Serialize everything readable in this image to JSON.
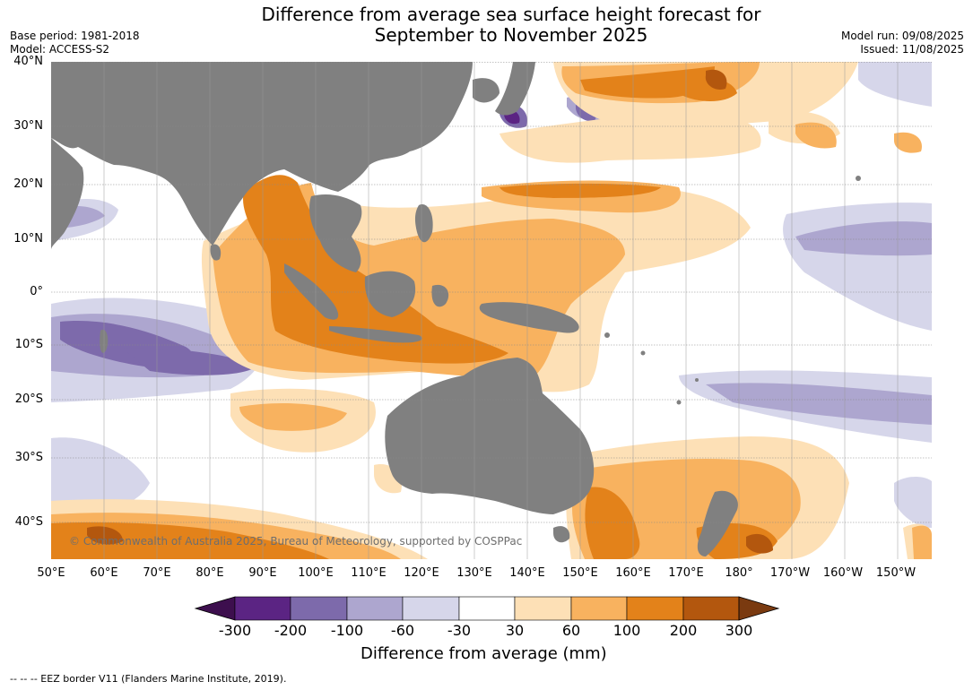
{
  "header": {
    "title_line1": "Difference from average sea surface height forecast for",
    "title_line2": "September to November 2025",
    "base_period": "Base period: 1981-2018",
    "model": "Model: ACCESS-S2",
    "model_run": "Model run: 09/08/2025",
    "issued": "Issued: 11/08/2025"
  },
  "map": {
    "lat_labels": [
      "40°N",
      "30°N",
      "20°N",
      "10°N",
      "0°",
      "10°S",
      "20°S",
      "30°S",
      "40°S"
    ],
    "lon_labels": [
      "50°E",
      "60°E",
      "70°E",
      "80°E",
      "90°E",
      "100°E",
      "110°E",
      "120°E",
      "130°E",
      "140°E",
      "150°E",
      "160°E",
      "170°E",
      "180°",
      "170°W",
      "160°W",
      "150°W"
    ],
    "copyright": "© Commonwealth of Australia 2025, Bureau of Meteorology, supported by COSPPac",
    "land_color": "#808080",
    "ocean_base_color": "#ffffff"
  },
  "colorbar": {
    "ticks": [
      "-300",
      "-200",
      "-100",
      "-60",
      "-30",
      "30",
      "60",
      "100",
      "200",
      "300"
    ],
    "colors": [
      "#3d0f4e",
      "#5b2483",
      "#7d6aab",
      "#ada6cf",
      "#d6d6ea",
      "#ffffff",
      "#fde0b6",
      "#f8b25f",
      "#e3821a",
      "#b3570e",
      "#7a3a10"
    ],
    "title": "Difference from average (mm)"
  },
  "footnote": "--  --  -- EEZ border V11 (Flanders Marine Institute, 2019)."
}
